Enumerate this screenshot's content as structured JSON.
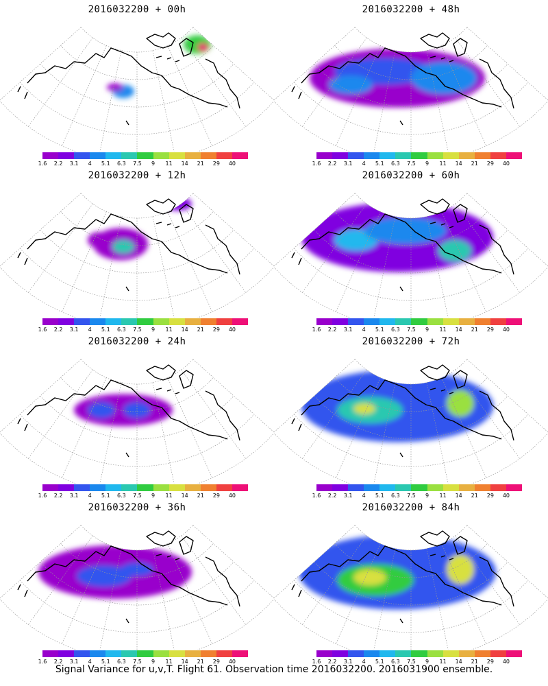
{
  "footer": "Signal Variance for u,v,T. Flight 61. Observation time 2016032200. 2016031900 ensemble.",
  "colorbar": {
    "levels": [
      "1.6",
      "2.2",
      "3.1",
      "4",
      "5.1",
      "6.3",
      "7.5",
      "9",
      "11",
      "14",
      "21",
      "29",
      "40"
    ],
    "colors": [
      "#9900cc",
      "#8000e0",
      "#3355ee",
      "#1a88ee",
      "#20b8ee",
      "#2ac8b0",
      "#30cc40",
      "#9ae040",
      "#d8e040",
      "#e8b040",
      "#f08030",
      "#f04040",
      "#ee1077"
    ]
  },
  "chart_data": [
    {
      "type": "heatmap",
      "title": "2016032200 + 00h",
      "forecast_hour": 0,
      "blobs": [
        {
          "x": 0.72,
          "y": 0.2,
          "rx": 0.05,
          "ry": 0.07,
          "level": 6
        },
        {
          "x": 0.74,
          "y": 0.22,
          "rx": 0.02,
          "ry": 0.03,
          "level": 12
        },
        {
          "x": 0.45,
          "y": 0.55,
          "rx": 0.04,
          "ry": 0.05,
          "level": 3
        },
        {
          "x": 0.42,
          "y": 0.52,
          "rx": 0.03,
          "ry": 0.03,
          "level": 0
        }
      ]
    },
    {
      "type": "heatmap",
      "title": "2016032200 + 48h",
      "forecast_hour": 48,
      "blobs": [
        {
          "x": 0.45,
          "y": 0.45,
          "rx": 0.32,
          "ry": 0.22,
          "level": 0
        },
        {
          "x": 0.4,
          "y": 0.4,
          "rx": 0.18,
          "ry": 0.1,
          "level": 2
        },
        {
          "x": 0.62,
          "y": 0.45,
          "rx": 0.12,
          "ry": 0.12,
          "level": 3
        },
        {
          "x": 0.28,
          "y": 0.5,
          "rx": 0.08,
          "ry": 0.07,
          "level": 3
        }
      ]
    },
    {
      "type": "heatmap",
      "title": "2016032200 + 12h",
      "forecast_hour": 12,
      "blobs": [
        {
          "x": 0.44,
          "y": 0.45,
          "rx": 0.1,
          "ry": 0.12,
          "level": 0
        },
        {
          "x": 0.45,
          "y": 0.47,
          "rx": 0.04,
          "ry": 0.05,
          "level": 5
        },
        {
          "x": 0.36,
          "y": 0.42,
          "rx": 0.04,
          "ry": 0.06,
          "level": 0
        },
        {
          "x": 0.65,
          "y": 0.15,
          "rx": 0.05,
          "ry": 0.05,
          "level": 1
        }
      ]
    },
    {
      "type": "heatmap",
      "title": "2016032200 + 60h",
      "forecast_hour": 60,
      "blobs": [
        {
          "x": 0.45,
          "y": 0.4,
          "rx": 0.35,
          "ry": 0.26,
          "level": 1
        },
        {
          "x": 0.3,
          "y": 0.42,
          "rx": 0.08,
          "ry": 0.08,
          "level": 4
        },
        {
          "x": 0.66,
          "y": 0.5,
          "rx": 0.06,
          "ry": 0.08,
          "level": 5
        },
        {
          "x": 0.48,
          "y": 0.35,
          "rx": 0.15,
          "ry": 0.1,
          "level": 3
        }
      ]
    },
    {
      "type": "heatmap",
      "title": "2016032200 + 24h",
      "forecast_hour": 24,
      "blobs": [
        {
          "x": 0.45,
          "y": 0.45,
          "rx": 0.18,
          "ry": 0.12,
          "level": 0
        },
        {
          "x": 0.37,
          "y": 0.45,
          "rx": 0.05,
          "ry": 0.06,
          "level": 2
        },
        {
          "x": 0.5,
          "y": 0.45,
          "rx": 0.05,
          "ry": 0.06,
          "level": 2
        }
      ]
    },
    {
      "type": "heatmap",
      "title": "2016032200 + 72h",
      "forecast_hour": 72,
      "blobs": [
        {
          "x": 0.45,
          "y": 0.42,
          "rx": 0.35,
          "ry": 0.27,
          "level": 2
        },
        {
          "x": 0.35,
          "y": 0.45,
          "rx": 0.12,
          "ry": 0.1,
          "level": 5
        },
        {
          "x": 0.33,
          "y": 0.44,
          "rx": 0.04,
          "ry": 0.04,
          "level": 8
        },
        {
          "x": 0.68,
          "y": 0.4,
          "rx": 0.05,
          "ry": 0.1,
          "level": 7
        }
      ]
    },
    {
      "type": "heatmap",
      "title": "2016032200 + 36h",
      "forecast_hour": 36,
      "blobs": [
        {
          "x": 0.42,
          "y": 0.42,
          "rx": 0.28,
          "ry": 0.2,
          "level": 0
        },
        {
          "x": 0.38,
          "y": 0.45,
          "rx": 0.1,
          "ry": 0.08,
          "level": 2
        },
        {
          "x": 0.5,
          "y": 0.4,
          "rx": 0.06,
          "ry": 0.05,
          "level": 2
        }
      ]
    },
    {
      "type": "heatmap",
      "title": "2016032200 + 84h",
      "forecast_hour": 84,
      "blobs": [
        {
          "x": 0.45,
          "y": 0.42,
          "rx": 0.36,
          "ry": 0.28,
          "level": 2
        },
        {
          "x": 0.37,
          "y": 0.48,
          "rx": 0.14,
          "ry": 0.12,
          "level": 6
        },
        {
          "x": 0.35,
          "y": 0.46,
          "rx": 0.06,
          "ry": 0.06,
          "level": 8
        },
        {
          "x": 0.68,
          "y": 0.4,
          "rx": 0.05,
          "ry": 0.11,
          "level": 8
        }
      ]
    }
  ]
}
